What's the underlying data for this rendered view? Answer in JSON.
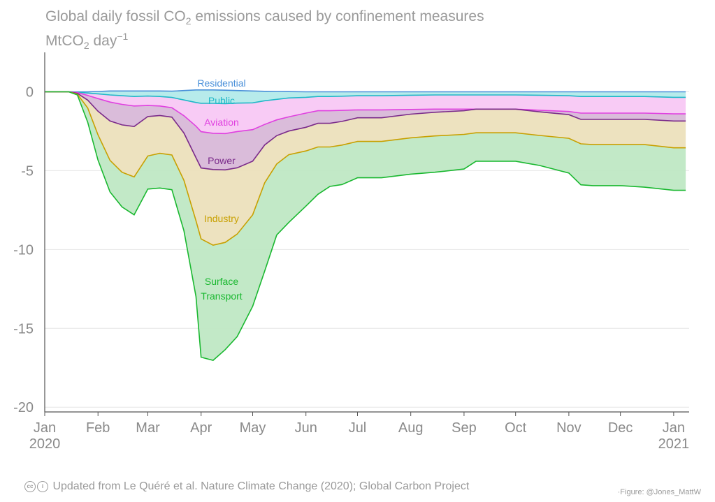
{
  "header": {
    "title_pre": "Global daily fossil CO",
    "title_sub": "2",
    "title_post": " emissions caused by confinement measures",
    "unit_pre": "MtCO",
    "unit_sub": "2",
    "unit_mid": " day",
    "unit_sup": "−1"
  },
  "footer": {
    "cc_icon": "cc",
    "by_icon": "i",
    "source": "Updated from Le Quéré et al. Nature Climate Change (2020); Global Carbon Project",
    "credit": "·Figure: @Jones_MattW"
  },
  "chart_data": {
    "type": "area",
    "stacked": true,
    "x": [
      "2020-01-01",
      "2020-01-15",
      "2020-01-20",
      "2020-01-26",
      "2020-02-01",
      "2020-02-08",
      "2020-02-15",
      "2020-02-22",
      "2020-03-01",
      "2020-03-08",
      "2020-03-15",
      "2020-03-22",
      "2020-03-29",
      "2020-04-01",
      "2020-04-08",
      "2020-04-15",
      "2020-04-22",
      "2020-05-01",
      "2020-05-08",
      "2020-05-15",
      "2020-05-22",
      "2020-06-01",
      "2020-06-08",
      "2020-06-15",
      "2020-06-22",
      "2020-07-01",
      "2020-07-15",
      "2020-08-01",
      "2020-08-15",
      "2020-09-01",
      "2020-09-08",
      "2020-09-15",
      "2020-10-01",
      "2020-10-15",
      "2020-11-01",
      "2020-11-08",
      "2020-11-15",
      "2020-12-01",
      "2020-12-15",
      "2021-01-01",
      "2021-01-08"
    ],
    "series": [
      {
        "name": "Residential",
        "color": "#4a90d9",
        "fill": "#c5daf5",
        "values": [
          0,
          0,
          0,
          0,
          0.02,
          0.05,
          0.05,
          0.05,
          0.05,
          0.05,
          0.04,
          0.08,
          0.12,
          0.12,
          0.12,
          0.1,
          0.08,
          0.05,
          0.03,
          0.02,
          0.01,
          0,
          0,
          0,
          0,
          0,
          0,
          0,
          0,
          0,
          0,
          0,
          0,
          0,
          0,
          0,
          0,
          0,
          0,
          0,
          0
        ]
      },
      {
        "name": "Public",
        "color": "#20b8c8",
        "fill": "#b3eaea",
        "values": [
          0,
          0,
          -0.02,
          -0.08,
          -0.15,
          -0.25,
          -0.3,
          -0.35,
          -0.32,
          -0.35,
          -0.4,
          -0.6,
          -0.8,
          -0.85,
          -0.85,
          -0.85,
          -0.8,
          -0.75,
          -0.6,
          -0.5,
          -0.4,
          -0.35,
          -0.3,
          -0.3,
          -0.28,
          -0.25,
          -0.25,
          -0.22,
          -0.2,
          -0.2,
          -0.2,
          -0.2,
          -0.2,
          -0.22,
          -0.25,
          -0.3,
          -0.3,
          -0.3,
          -0.3,
          -0.35,
          -0.35
        ]
      },
      {
        "name": "Aviation",
        "color": "#e040e0",
        "fill": "#f8c8f4",
        "values": [
          0,
          0,
          -0.03,
          -0.15,
          -0.3,
          -0.45,
          -0.55,
          -0.6,
          -0.6,
          -0.6,
          -0.65,
          -1.0,
          -1.5,
          -1.8,
          -1.9,
          -1.9,
          -1.8,
          -1.7,
          -1.5,
          -1.3,
          -1.2,
          -1.0,
          -0.9,
          -0.9,
          -0.9,
          -0.9,
          -0.9,
          -0.9,
          -0.9,
          -0.9,
          -0.9,
          -0.9,
          -0.9,
          -0.95,
          -1.0,
          -1.05,
          -1.05,
          -1.05,
          -1.05,
          -1.05,
          -1.05
        ]
      },
      {
        "name": "Power",
        "color": "#7a2a8a",
        "fill": "#d8b8d8",
        "values": [
          0,
          0,
          -0.05,
          -0.3,
          -0.8,
          -1.2,
          -1.3,
          -1.3,
          -0.7,
          -0.6,
          -0.6,
          -1.1,
          -2.0,
          -2.3,
          -2.3,
          -2.3,
          -2.3,
          -2.0,
          -1.3,
          -1.0,
          -0.9,
          -0.9,
          -0.8,
          -0.8,
          -0.7,
          -0.5,
          -0.5,
          -0.3,
          -0.2,
          -0.1,
          0,
          0,
          0,
          -0.1,
          -0.2,
          -0.4,
          -0.4,
          -0.4,
          -0.4,
          -0.45,
          -0.45
        ]
      },
      {
        "name": "Industry",
        "color": "#c8a000",
        "fill": "#ece0bc",
        "values": [
          0,
          0,
          -0.05,
          -0.5,
          -1.5,
          -2.5,
          -3.0,
          -3.2,
          -2.5,
          -2.4,
          -2.4,
          -3.0,
          -4.0,
          -4.5,
          -4.8,
          -4.6,
          -4.2,
          -3.4,
          -2.4,
          -1.8,
          -1.5,
          -1.5,
          -1.5,
          -1.5,
          -1.5,
          -1.5,
          -1.5,
          -1.5,
          -1.5,
          -1.5,
          -1.5,
          -1.5,
          -1.5,
          -1.5,
          -1.5,
          -1.55,
          -1.6,
          -1.6,
          -1.6,
          -1.7,
          -1.7
        ]
      },
      {
        "name": "Surface Transport",
        "color": "#1ab830",
        "fill": "#bfe8c4",
        "values": [
          0,
          0,
          -0.05,
          -0.9,
          -1.6,
          -2.0,
          -2.2,
          -2.4,
          -2.1,
          -2.2,
          -2.2,
          -3.2,
          -4.8,
          -7.5,
          -7.3,
          -6.8,
          -6.5,
          -5.8,
          -5.6,
          -4.5,
          -4.3,
          -3.5,
          -3.0,
          -2.5,
          -2.5,
          -2.3,
          -2.3,
          -2.3,
          -2.3,
          -2.2,
          -1.8,
          -1.8,
          -1.8,
          -1.9,
          -2.2,
          -2.6,
          -2.6,
          -2.6,
          -2.7,
          -2.7,
          -2.7
        ]
      }
    ],
    "labels": [
      "Residential",
      "Public",
      "Aviation",
      "Power",
      "Industry",
      "Surface\nTransport"
    ],
    "y_ticks": [
      0,
      -5,
      -10,
      -15,
      -20
    ],
    "ylim": [
      -20.3,
      2.5
    ],
    "xlim": [
      "2020-01-01",
      "2021-01-10"
    ],
    "x_ticks": [
      {
        "date": "2020-01-01",
        "label": "Jan",
        "year": "2020"
      },
      {
        "date": "2020-02-01",
        "label": "Feb"
      },
      {
        "date": "2020-03-01",
        "label": "Mar"
      },
      {
        "date": "2020-04-01",
        "label": "Apr"
      },
      {
        "date": "2020-05-01",
        "label": "May"
      },
      {
        "date": "2020-06-01",
        "label": "Jun"
      },
      {
        "date": "2020-07-01",
        "label": "Jul"
      },
      {
        "date": "2020-08-01",
        "label": "Aug"
      },
      {
        "date": "2020-09-01",
        "label": "Sep"
      },
      {
        "date": "2020-10-01",
        "label": "Oct"
      },
      {
        "date": "2020-11-01",
        "label": "Nov"
      },
      {
        "date": "2020-12-01",
        "label": "Dec"
      },
      {
        "date": "2021-01-01",
        "label": "Jan",
        "year": "2021"
      }
    ],
    "grid": true,
    "legend": "inline"
  }
}
